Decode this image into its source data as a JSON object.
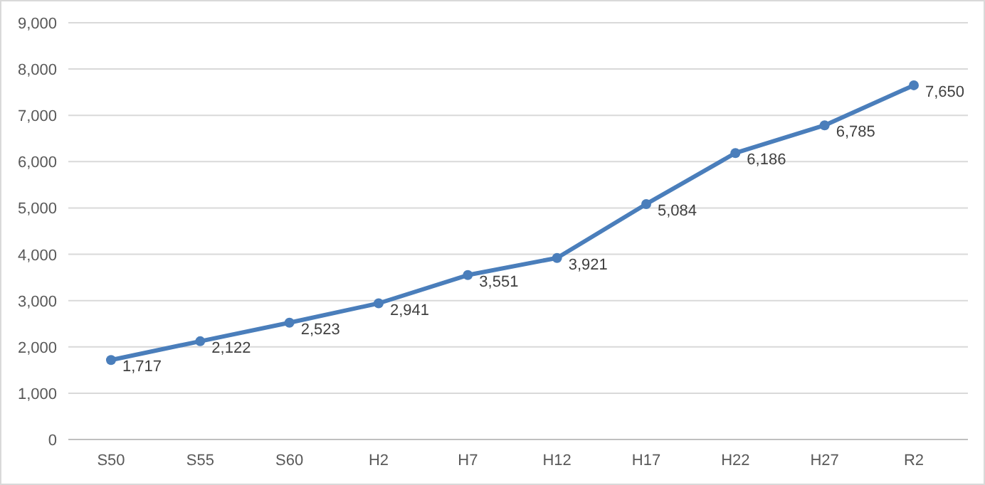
{
  "chart_data": {
    "type": "line",
    "categories": [
      "S50",
      "S55",
      "S60",
      "H2",
      "H7",
      "H12",
      "H17",
      "H22",
      "H27",
      "R2"
    ],
    "series": [
      {
        "color": "#4a7ebb",
        "values": [
          1717,
          2122,
          2523,
          2941,
          3551,
          3921,
          5084,
          6186,
          6785,
          7650
        ],
        "value_labels": [
          "1,717",
          "2,122",
          "2,523",
          "2,941",
          "3,551",
          "3,921",
          "5,084",
          "6,186",
          "6,785",
          "7,650"
        ]
      }
    ],
    "ylim": [
      0,
      9000
    ],
    "yticks": [
      {
        "value": 0,
        "label": "0"
      },
      {
        "value": 1000,
        "label": "1,000"
      },
      {
        "value": 2000,
        "label": "2,000"
      },
      {
        "value": 3000,
        "label": "3,000"
      },
      {
        "value": 4000,
        "label": "4,000"
      },
      {
        "value": 5000,
        "label": "5,000"
      },
      {
        "value": 6000,
        "label": "6,000"
      },
      {
        "value": 7000,
        "label": "7,000"
      },
      {
        "value": 8000,
        "label": "8,000"
      },
      {
        "value": 9000,
        "label": "9,000"
      }
    ],
    "grid": "y",
    "marker": "circle",
    "line_style": "solid"
  }
}
